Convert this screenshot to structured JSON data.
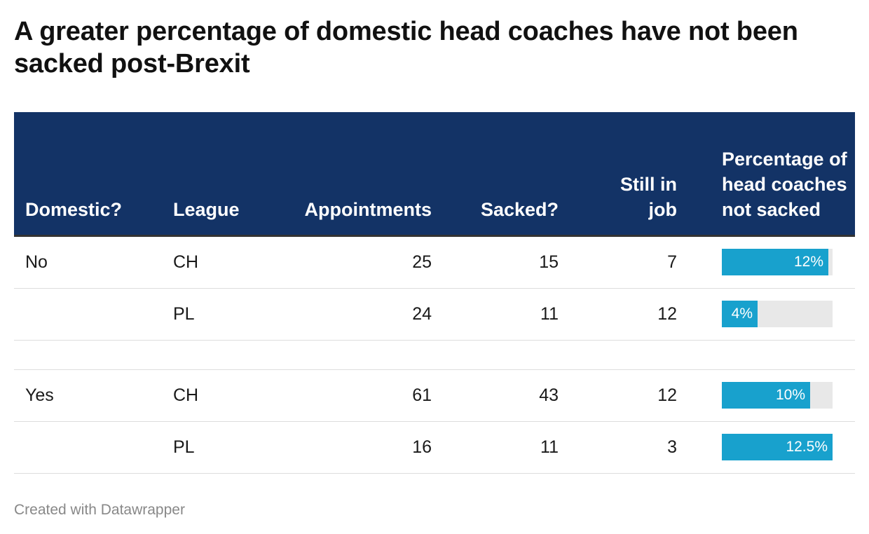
{
  "title": "A greater percentage of domestic head coaches have not been sacked post-Brexit",
  "footer": "Created with Datawrapper",
  "colors": {
    "header_bg": "#133366",
    "bar": "#18a1cd",
    "bar_bg": "#e8e8e8"
  },
  "chart_data": {
    "type": "table",
    "title": "A greater percentage of domestic head coaches have not been sacked post-Brexit",
    "columns": [
      "Domestic?",
      "League",
      "Appointments",
      "Sacked?",
      "Still in job",
      "Percentage of head coaches not sacked"
    ],
    "rows": [
      {
        "domestic": "No",
        "league": "CH",
        "appointments": "25",
        "sacked": "15",
        "still": "7",
        "pct_label": "12%",
        "pct": 12
      },
      {
        "domestic": "",
        "league": "PL",
        "appointments": "24",
        "sacked": "11",
        "still": "12",
        "pct_label": "4%",
        "pct": 4
      },
      {
        "domestic": "Yes",
        "league": "CH",
        "appointments": "61",
        "sacked": "43",
        "still": "12",
        "pct_label": "10%",
        "pct": 10
      },
      {
        "domestic": "",
        "league": "PL",
        "appointments": "16",
        "sacked": "11",
        "still": "3",
        "pct_label": "12.5%",
        "pct": 12.5
      }
    ],
    "bar_max": 12.5
  }
}
